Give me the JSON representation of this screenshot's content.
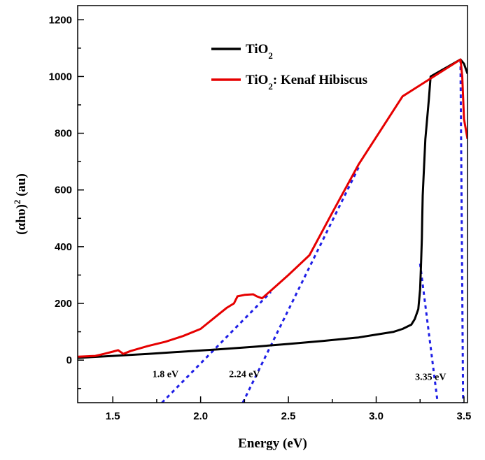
{
  "chart_data": {
    "type": "line",
    "xlabel": "Energy (eV)",
    "ylabel": {
      "main": "(αhυ)",
      "sup": "2",
      "unit": " (au)"
    },
    "xlim": [
      1.3,
      3.52
    ],
    "ylim": [
      -150,
      1250
    ],
    "x_ticks": [
      "1.5",
      "2.0",
      "2.5",
      "3.0",
      "3.5"
    ],
    "y_ticks": [
      "0",
      "200",
      "400",
      "600",
      "800",
      "1000",
      "1200"
    ],
    "grid": false,
    "legend_position": "top-left-inside",
    "series": [
      {
        "name": "TiO",
        "name_sub": "2",
        "name_rest": "",
        "color": "#000000",
        "x": [
          1.3,
          1.5,
          1.7,
          1.9,
          2.1,
          2.3,
          2.5,
          2.7,
          2.9,
          3.0,
          3.1,
          3.15,
          3.2,
          3.22,
          3.24,
          3.25,
          3.255,
          3.26,
          3.262,
          3.265,
          3.27,
          3.28,
          3.29,
          3.3,
          3.31,
          3.48,
          3.5,
          3.52
        ],
        "y": [
          8,
          15,
          22,
          30,
          38,
          47,
          57,
          68,
          80,
          90,
          100,
          110,
          125,
          145,
          180,
          250,
          330,
          430,
          500,
          580,
          650,
          780,
          850,
          920,
          1000,
          1060,
          1045,
          1010
        ]
      },
      {
        "name": "TiO",
        "name_sub": "2",
        "name_rest": ": Kenaf Hibiscus",
        "color": "#e60000",
        "x": [
          1.3,
          1.4,
          1.45,
          1.5,
          1.53,
          1.56,
          1.6,
          1.7,
          1.8,
          1.9,
          2.0,
          2.1,
          2.15,
          2.19,
          2.21,
          2.25,
          2.3,
          2.32,
          2.35,
          2.4,
          2.5,
          2.62,
          2.75,
          2.9,
          3.15,
          3.48,
          3.49,
          3.5,
          3.52
        ],
        "y": [
          12,
          15,
          22,
          30,
          35,
          22,
          32,
          50,
          65,
          85,
          110,
          160,
          185,
          200,
          225,
          230,
          232,
          225,
          218,
          245,
          300,
          370,
          520,
          690,
          930,
          1060,
          1000,
          850,
          780
        ]
      }
    ],
    "tangent_lines": [
      {
        "x": [
          1.78,
          2.4
        ],
        "y": [
          -150,
          240
        ]
      },
      {
        "x": [
          2.24,
          2.9
        ],
        "y": [
          -150,
          680
        ]
      },
      {
        "x": [
          3.25,
          3.35
        ],
        "y": [
          340,
          -150
        ]
      },
      {
        "x": [
          3.48,
          3.495
        ],
        "y": [
          1060,
          -150
        ]
      }
    ],
    "annotations": [
      {
        "text": "1.8 eV",
        "x": 1.8,
        "y": -60
      },
      {
        "text": "2.24 eV",
        "x": 2.25,
        "y": -60
      },
      {
        "text": "3.35 eV",
        "x": 3.31,
        "y": -70
      }
    ]
  }
}
